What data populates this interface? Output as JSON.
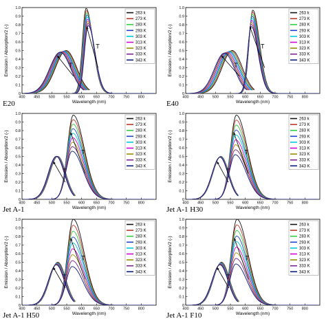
{
  "colors": [
    "#111111",
    "#c0392b",
    "#2ecc40",
    "#1f3fd0",
    "#00c8e0",
    "#d400d4",
    "#9a8c00",
    "#7a2090",
    "#0a1a7a"
  ],
  "chart_data": [
    {
      "type": "line",
      "panel_label": "E20",
      "xlabel": "Wavelength (nm)",
      "ylabel": "Emission / Absorption/2 (-)",
      "xlim": [
        400,
        850
      ],
      "ylim": [
        0,
        1.0
      ],
      "xticks": [
        400,
        450,
        500,
        550,
        600,
        650,
        700,
        750,
        800
      ],
      "yticks": [
        0,
        0.1,
        0.2,
        0.3,
        0.4,
        0.5,
        0.6,
        0.7,
        0.8,
        0.9,
        1.0
      ],
      "legend_position": "top-right",
      "series": [
        {
          "name": "263 k"
        },
        {
          "name": "273 K"
        },
        {
          "name": "283 K"
        },
        {
          "name": "293 K"
        },
        {
          "name": "303 K"
        },
        {
          "name": "313 K"
        },
        {
          "name": "323 K"
        },
        {
          "name": "333 K"
        },
        {
          "name": "343 K"
        }
      ],
      "absorption": {
        "peak_x_start": 548,
        "peak_x_end": 528,
        "peak_y_start": 0.5,
        "peak_y_end": 0.48,
        "width": 50
      },
      "emission": {
        "peak_x_start": 615,
        "peak_x_end": 622,
        "peak_y_start": 0.99,
        "peak_y_end": 0.79,
        "width": 25
      },
      "annotations": [
        "T",
        "T"
      ]
    },
    {
      "type": "line",
      "panel_label": "E40",
      "xlabel": "Wavelength (nm)",
      "ylabel": "Emission / Absorption/2 (-)",
      "xlim": [
        400,
        850
      ],
      "ylim": [
        0,
        1.0
      ],
      "xticks": [
        400,
        450,
        500,
        550,
        600,
        650,
        700,
        750,
        800
      ],
      "yticks": [
        0,
        0.1,
        0.2,
        0.3,
        0.4,
        0.5,
        0.6,
        0.7,
        0.8,
        0.9,
        1.0
      ],
      "legend_position": "top-right",
      "series": [
        {
          "name": "263 k"
        },
        {
          "name": "273 K"
        },
        {
          "name": "283 K"
        },
        {
          "name": "293 K"
        },
        {
          "name": "303 K"
        },
        {
          "name": "313 K"
        },
        {
          "name": "323 K"
        },
        {
          "name": "333 K"
        },
        {
          "name": "343 K"
        }
      ],
      "absorption": {
        "peak_x_start": 556,
        "peak_x_end": 530,
        "peak_y_start": 0.5,
        "peak_y_end": 0.47,
        "width": 48
      },
      "emission": {
        "peak_x_start": 625,
        "peak_x_end": 620,
        "peak_y_start": 0.97,
        "peak_y_end": 0.78,
        "width": 25
      },
      "annotations": [
        "T",
        "T"
      ]
    },
    {
      "type": "line",
      "panel_label": "Jet A-1",
      "xlabel": "Wavelength (nm)",
      "ylabel": "Emission / Absorption/2 (-)",
      "xlim": [
        400,
        850
      ],
      "ylim": [
        0,
        1.0
      ],
      "xticks": [
        400,
        450,
        500,
        550,
        600,
        650,
        700,
        750,
        800
      ],
      "yticks": [
        0,
        0.1,
        0.2,
        0.3,
        0.4,
        0.5,
        0.6,
        0.7,
        0.8,
        0.9,
        1.0
      ],
      "legend_position": "top-right",
      "series": [
        {
          "name": "263 k"
        },
        {
          "name": "273 K"
        },
        {
          "name": "283 K"
        },
        {
          "name": "293 K"
        },
        {
          "name": "303 K"
        },
        {
          "name": "313 K"
        },
        {
          "name": "323 K"
        },
        {
          "name": "333 K"
        },
        {
          "name": "343 K"
        }
      ],
      "absorption": {
        "peak_x_start": 520,
        "peak_x_end": 515,
        "peak_y_start": 0.5,
        "peak_y_end": 0.5,
        "width": 38
      },
      "emission": {
        "peak_x_start": 572,
        "peak_x_end": 568,
        "peak_y_start": 0.98,
        "peak_y_end": 0.56,
        "width": 40
      },
      "annotations": [
        "T",
        "T"
      ]
    },
    {
      "type": "line",
      "panel_label": "Jet A-1 H30",
      "xlabel": "Wavelength (nm)",
      "ylabel": "Emission / Absorption/2 (-)",
      "xlim": [
        400,
        850
      ],
      "ylim": [
        0,
        1.0
      ],
      "xticks": [
        400,
        450,
        500,
        550,
        600,
        650,
        700,
        750,
        800
      ],
      "yticks": [
        0,
        0.1,
        0.2,
        0.3,
        0.4,
        0.5,
        0.6,
        0.7,
        0.8,
        0.9,
        1.0
      ],
      "legend_position": "top-right",
      "series": [
        {
          "name": "263 k"
        },
        {
          "name": "273 K"
        },
        {
          "name": "283 K"
        },
        {
          "name": "293 K"
        },
        {
          "name": "303 K"
        },
        {
          "name": "313 K"
        },
        {
          "name": "323 K"
        },
        {
          "name": "333 K"
        },
        {
          "name": "343 K"
        }
      ],
      "absorption": {
        "peak_x_start": 518,
        "peak_x_end": 515,
        "peak_y_start": 0.5,
        "peak_y_end": 0.49,
        "width": 38
      },
      "emission": {
        "peak_x_start": 570,
        "peak_x_end": 566,
        "peak_y_start": 0.98,
        "peak_y_end": 0.52,
        "width": 40
      },
      "annotations": [
        "T",
        "T"
      ]
    },
    {
      "type": "line",
      "panel_label": "Jet A-1 H50",
      "xlabel": "Wavelength (nm)",
      "ylabel": "Emission / Absorption/2 (-)",
      "xlim": [
        400,
        850
      ],
      "ylim": [
        0,
        1.0
      ],
      "xticks": [
        400,
        450,
        500,
        550,
        600,
        650,
        700,
        750,
        800
      ],
      "yticks": [
        0,
        0.1,
        0.2,
        0.3,
        0.4,
        0.5,
        0.6,
        0.7,
        0.8,
        0.9,
        1.0
      ],
      "legend_position": "top-right",
      "series": [
        {
          "name": "263 k"
        },
        {
          "name": "273 K"
        },
        {
          "name": "283 K"
        },
        {
          "name": "293 K"
        },
        {
          "name": "303 K"
        },
        {
          "name": "313 K"
        },
        {
          "name": "323 K"
        },
        {
          "name": "333 K"
        },
        {
          "name": "343 K"
        }
      ],
      "absorption": {
        "peak_x_start": 520,
        "peak_x_end": 515,
        "peak_y_start": 0.5,
        "peak_y_end": 0.47,
        "width": 38
      },
      "emission": {
        "peak_x_start": 572,
        "peak_x_end": 568,
        "peak_y_start": 1.0,
        "peak_y_end": 0.45,
        "width": 40
      },
      "annotations": [
        "T",
        "T"
      ]
    },
    {
      "type": "line",
      "panel_label": "Jet A-1 F10",
      "xlabel": "Wavelength (nm)",
      "ylabel": "Emission / Absorption/2 (-)",
      "xlim": [
        400,
        850
      ],
      "ylim": [
        0,
        1.0
      ],
      "xticks": [
        400,
        450,
        500,
        550,
        600,
        650,
        700,
        750,
        800
      ],
      "yticks": [
        0,
        0.1,
        0.2,
        0.3,
        0.4,
        0.5,
        0.6,
        0.7,
        0.8,
        0.9,
        1.0
      ],
      "legend_position": "top-right",
      "series": [
        {
          "name": "263 k"
        },
        {
          "name": "273 K"
        },
        {
          "name": "283 K"
        },
        {
          "name": "293 K"
        },
        {
          "name": "303 K"
        },
        {
          "name": "313 K"
        },
        {
          "name": "323 K"
        },
        {
          "name": "333 K"
        },
        {
          "name": "343 K"
        }
      ],
      "absorption": {
        "peak_x_start": 520,
        "peak_x_end": 515,
        "peak_y_start": 0.5,
        "peak_y_end": 0.47,
        "width": 38
      },
      "emission": {
        "peak_x_start": 572,
        "peak_x_end": 568,
        "peak_y_start": 1.0,
        "peak_y_end": 0.48,
        "width": 40
      },
      "annotations": [
        "T",
        "T"
      ]
    }
  ]
}
